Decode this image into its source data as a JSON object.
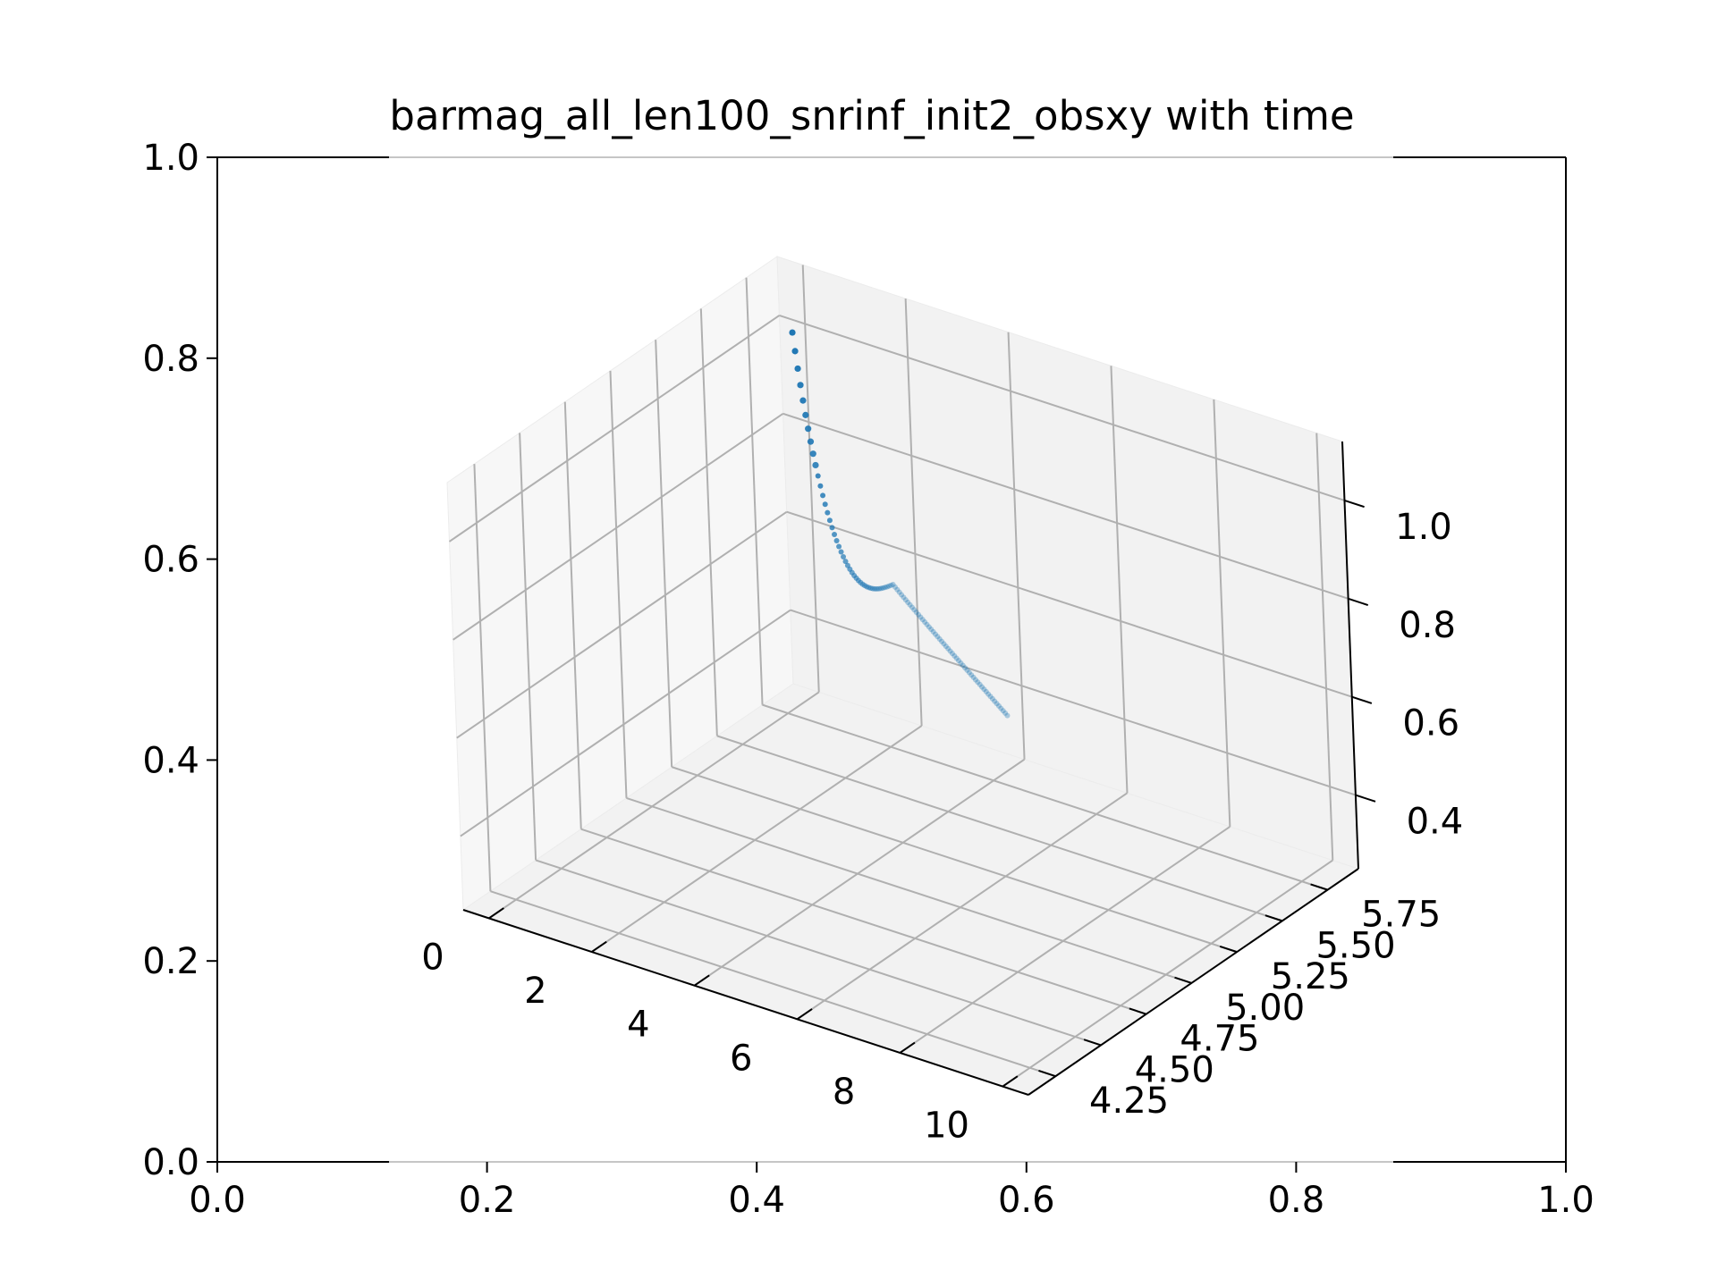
{
  "chart_data": {
    "type": "scatter",
    "projection": "3d",
    "title": "barmag_all_len100_snrinf_init2_obsxy with time",
    "outer_axes": {
      "x_ticks": [
        "0.0",
        "0.2",
        "0.4",
        "0.6",
        "0.8",
        "1.0"
      ],
      "y_ticks": [
        "0.0",
        "0.2",
        "0.4",
        "0.6",
        "0.8",
        "1.0"
      ],
      "xlim": [
        0,
        1
      ],
      "ylim": [
        0,
        1
      ]
    },
    "axes3d": {
      "x_ticks": [
        "0",
        "2",
        "4",
        "6",
        "8",
        "10"
      ],
      "y_ticks": [
        "4.25",
        "4.50",
        "4.75",
        "5.00",
        "5.25",
        "5.50",
        "5.75"
      ],
      "z_ticks": [
        "0.4",
        "0.6",
        "0.8",
        "1.0"
      ],
      "xlim": [
        -0.5,
        10.5
      ],
      "ylim": [
        4.1,
        5.92
      ],
      "zlim": [
        0.25,
        1.12
      ],
      "grid": true
    },
    "series": [
      {
        "color": "#1f77b4",
        "point_count": 100,
        "x_range": [
          0,
          10
        ],
        "start": {
          "y": 5.85,
          "z": 0.95
        },
        "end": {
          "y": 4.2,
          "z": 1.1
        }
      }
    ]
  }
}
